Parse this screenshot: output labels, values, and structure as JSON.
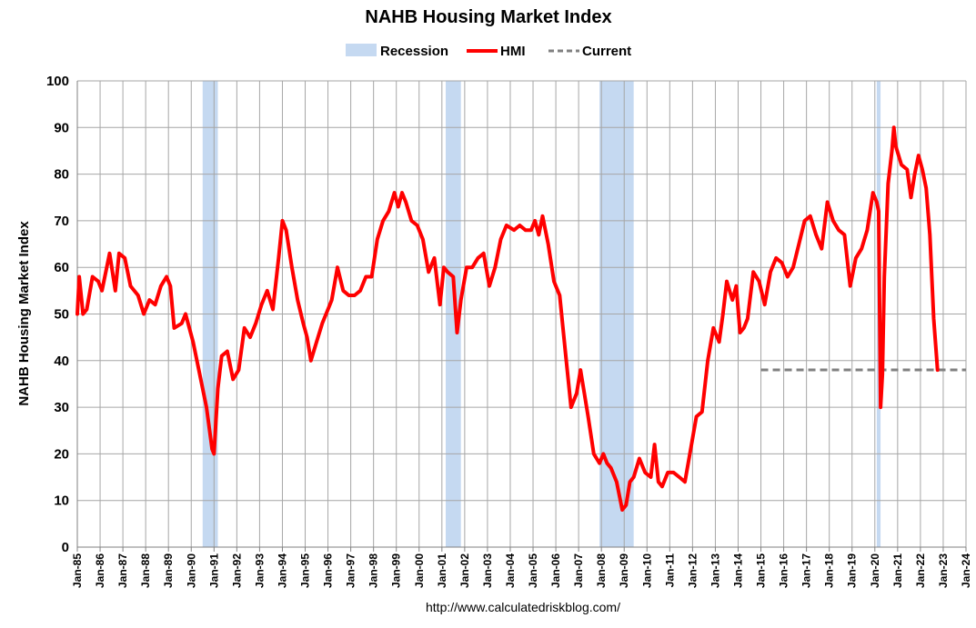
{
  "chart_data": {
    "type": "line",
    "title": "NAHB Housing Market Index",
    "ylabel": "NAHB Housing Market Index",
    "xlabel": "",
    "footer": "http://www.calculatedriskblog.com/",
    "legend": {
      "placement": "top",
      "items": [
        {
          "label": "Recession",
          "kind": "band",
          "color": "#c5d9f1"
        },
        {
          "label": "HMI",
          "kind": "line",
          "color": "#ff0000"
        },
        {
          "label": "Current",
          "kind": "dash",
          "color": "#808080"
        }
      ]
    },
    "ylim": [
      0,
      100
    ],
    "yticks": [
      0,
      10,
      20,
      30,
      40,
      50,
      60,
      70,
      80,
      90,
      100
    ],
    "xlim": [
      "Jan-85",
      "Jan-24"
    ],
    "xticks": [
      "Jan-85",
      "Jan-86",
      "Jan-87",
      "Jan-88",
      "Jan-89",
      "Jan-90",
      "Jan-91",
      "Jan-92",
      "Jan-93",
      "Jan-94",
      "Jan-95",
      "Jan-96",
      "Jan-97",
      "Jan-98",
      "Jan-99",
      "Jan-00",
      "Jan-01",
      "Jan-02",
      "Jan-03",
      "Jan-04",
      "Jan-05",
      "Jan-06",
      "Jan-07",
      "Jan-08",
      "Jan-09",
      "Jan-10",
      "Jan-11",
      "Jan-12",
      "Jan-13",
      "Jan-14",
      "Jan-15",
      "Jan-16",
      "Jan-17",
      "Jan-18",
      "Jan-19",
      "Jan-20",
      "Jan-21",
      "Jan-22",
      "Jan-23",
      "Jan-24"
    ],
    "grid": true,
    "recessions": [
      [
        "1990-07",
        "1991-03"
      ],
      [
        "2001-03",
        "2001-11"
      ],
      [
        "2007-12",
        "2009-06"
      ],
      [
        "2020-02",
        "2020-04"
      ]
    ],
    "current": {
      "value": 38,
      "from": "2015-01",
      "to": "2024-01"
    },
    "series": [
      {
        "name": "HMI",
        "color": "#ff0000",
        "points": [
          [
            "1985-01",
            50
          ],
          [
            "1985-02",
            58
          ],
          [
            "1985-04",
            50
          ],
          [
            "1985-06",
            51
          ],
          [
            "1985-09",
            58
          ],
          [
            "1985-12",
            57
          ],
          [
            "1986-02",
            55
          ],
          [
            "1986-06",
            63
          ],
          [
            "1986-09",
            55
          ],
          [
            "1986-11",
            63
          ],
          [
            "1987-02",
            62
          ],
          [
            "1987-05",
            56
          ],
          [
            "1987-09",
            54
          ],
          [
            "1987-12",
            50
          ],
          [
            "1988-03",
            53
          ],
          [
            "1988-06",
            52
          ],
          [
            "1988-09",
            56
          ],
          [
            "1988-12",
            58
          ],
          [
            "1989-02",
            56
          ],
          [
            "1989-04",
            47
          ],
          [
            "1989-08",
            48
          ],
          [
            "1989-10",
            50
          ],
          [
            "1990-02",
            44
          ],
          [
            "1990-06",
            36
          ],
          [
            "1990-09",
            30
          ],
          [
            "1990-12",
            21
          ],
          [
            "1991-01",
            20
          ],
          [
            "1991-03",
            34
          ],
          [
            "1991-05",
            41
          ],
          [
            "1991-08",
            42
          ],
          [
            "1991-11",
            36
          ],
          [
            "1992-02",
            38
          ],
          [
            "1992-05",
            47
          ],
          [
            "1992-08",
            45
          ],
          [
            "1992-11",
            48
          ],
          [
            "1993-02",
            52
          ],
          [
            "1993-05",
            55
          ],
          [
            "1993-08",
            51
          ],
          [
            "1993-11",
            62
          ],
          [
            "1994-01",
            70
          ],
          [
            "1994-03",
            68
          ],
          [
            "1994-06",
            60
          ],
          [
            "1994-09",
            53
          ],
          [
            "1994-12",
            48
          ],
          [
            "1995-02",
            45
          ],
          [
            "1995-04",
            40
          ],
          [
            "1995-07",
            44
          ],
          [
            "1995-10",
            48
          ],
          [
            "1996-01",
            51
          ],
          [
            "1996-03",
            53
          ],
          [
            "1996-06",
            60
          ],
          [
            "1996-09",
            55
          ],
          [
            "1996-12",
            54
          ],
          [
            "1997-03",
            54
          ],
          [
            "1997-06",
            55
          ],
          [
            "1997-09",
            58
          ],
          [
            "1997-12",
            58
          ],
          [
            "1998-03",
            66
          ],
          [
            "1998-06",
            70
          ],
          [
            "1998-09",
            72
          ],
          [
            "1998-12",
            76
          ],
          [
            "1999-02",
            73
          ],
          [
            "1999-04",
            76
          ],
          [
            "1999-06",
            74
          ],
          [
            "1999-09",
            70
          ],
          [
            "1999-12",
            69
          ],
          [
            "2000-03",
            66
          ],
          [
            "2000-06",
            59
          ],
          [
            "2000-09",
            62
          ],
          [
            "2000-12",
            52
          ],
          [
            "2001-02",
            60
          ],
          [
            "2001-04",
            59
          ],
          [
            "2001-07",
            58
          ],
          [
            "2001-09",
            46
          ],
          [
            "2001-11",
            53
          ],
          [
            "2002-02",
            60
          ],
          [
            "2002-05",
            60
          ],
          [
            "2002-08",
            62
          ],
          [
            "2002-11",
            63
          ],
          [
            "2003-02",
            56
          ],
          [
            "2003-05",
            60
          ],
          [
            "2003-08",
            66
          ],
          [
            "2003-11",
            69
          ],
          [
            "2004-03",
            68
          ],
          [
            "2004-06",
            69
          ],
          [
            "2004-09",
            68
          ],
          [
            "2004-12",
            68
          ],
          [
            "2005-02",
            70
          ],
          [
            "2005-04",
            67
          ],
          [
            "2005-06",
            71
          ],
          [
            "2005-09",
            65
          ],
          [
            "2005-12",
            57
          ],
          [
            "2006-03",
            54
          ],
          [
            "2006-06",
            42
          ],
          [
            "2006-09",
            30
          ],
          [
            "2006-12",
            33
          ],
          [
            "2007-02",
            38
          ],
          [
            "2007-04",
            33
          ],
          [
            "2007-06",
            28
          ],
          [
            "2007-09",
            20
          ],
          [
            "2007-12",
            18
          ],
          [
            "2008-02",
            20
          ],
          [
            "2008-04",
            18
          ],
          [
            "2008-06",
            17
          ],
          [
            "2008-09",
            14
          ],
          [
            "2008-12",
            8
          ],
          [
            "2009-02",
            9
          ],
          [
            "2009-04",
            14
          ],
          [
            "2009-06",
            15
          ],
          [
            "2009-09",
            19
          ],
          [
            "2009-12",
            16
          ],
          [
            "2010-03",
            15
          ],
          [
            "2010-05",
            22
          ],
          [
            "2010-07",
            14
          ],
          [
            "2010-09",
            13
          ],
          [
            "2010-12",
            16
          ],
          [
            "2011-03",
            16
          ],
          [
            "2011-06",
            15
          ],
          [
            "2011-09",
            14
          ],
          [
            "2011-12",
            21
          ],
          [
            "2012-03",
            28
          ],
          [
            "2012-06",
            29
          ],
          [
            "2012-09",
            40
          ],
          [
            "2012-12",
            47
          ],
          [
            "2013-03",
            44
          ],
          [
            "2013-05",
            50
          ],
          [
            "2013-07",
            57
          ],
          [
            "2013-10",
            53
          ],
          [
            "2013-12",
            56
          ],
          [
            "2014-02",
            46
          ],
          [
            "2014-04",
            47
          ],
          [
            "2014-06",
            49
          ],
          [
            "2014-09",
            59
          ],
          [
            "2014-12",
            57
          ],
          [
            "2015-03",
            52
          ],
          [
            "2015-06",
            59
          ],
          [
            "2015-09",
            62
          ],
          [
            "2015-12",
            61
          ],
          [
            "2016-03",
            58
          ],
          [
            "2016-06",
            60
          ],
          [
            "2016-09",
            65
          ],
          [
            "2016-12",
            70
          ],
          [
            "2017-03",
            71
          ],
          [
            "2017-06",
            67
          ],
          [
            "2017-09",
            64
          ],
          [
            "2017-12",
            74
          ],
          [
            "2018-03",
            70
          ],
          [
            "2018-06",
            68
          ],
          [
            "2018-09",
            67
          ],
          [
            "2018-12",
            56
          ],
          [
            "2019-03",
            62
          ],
          [
            "2019-06",
            64
          ],
          [
            "2019-09",
            68
          ],
          [
            "2019-12",
            76
          ],
          [
            "2020-02",
            74
          ],
          [
            "2020-03",
            72
          ],
          [
            "2020-04",
            30
          ],
          [
            "2020-05",
            37
          ],
          [
            "2020-06",
            58
          ],
          [
            "2020-08",
            78
          ],
          [
            "2020-10",
            85
          ],
          [
            "2020-11",
            90
          ],
          [
            "2020-12",
            86
          ],
          [
            "2021-03",
            82
          ],
          [
            "2021-06",
            81
          ],
          [
            "2021-08",
            75
          ],
          [
            "2021-10",
            80
          ],
          [
            "2021-12",
            84
          ],
          [
            "2022-02",
            81
          ],
          [
            "2022-04",
            77
          ],
          [
            "2022-06",
            67
          ],
          [
            "2022-08",
            49
          ],
          [
            "2022-10",
            38
          ]
        ]
      }
    ]
  }
}
